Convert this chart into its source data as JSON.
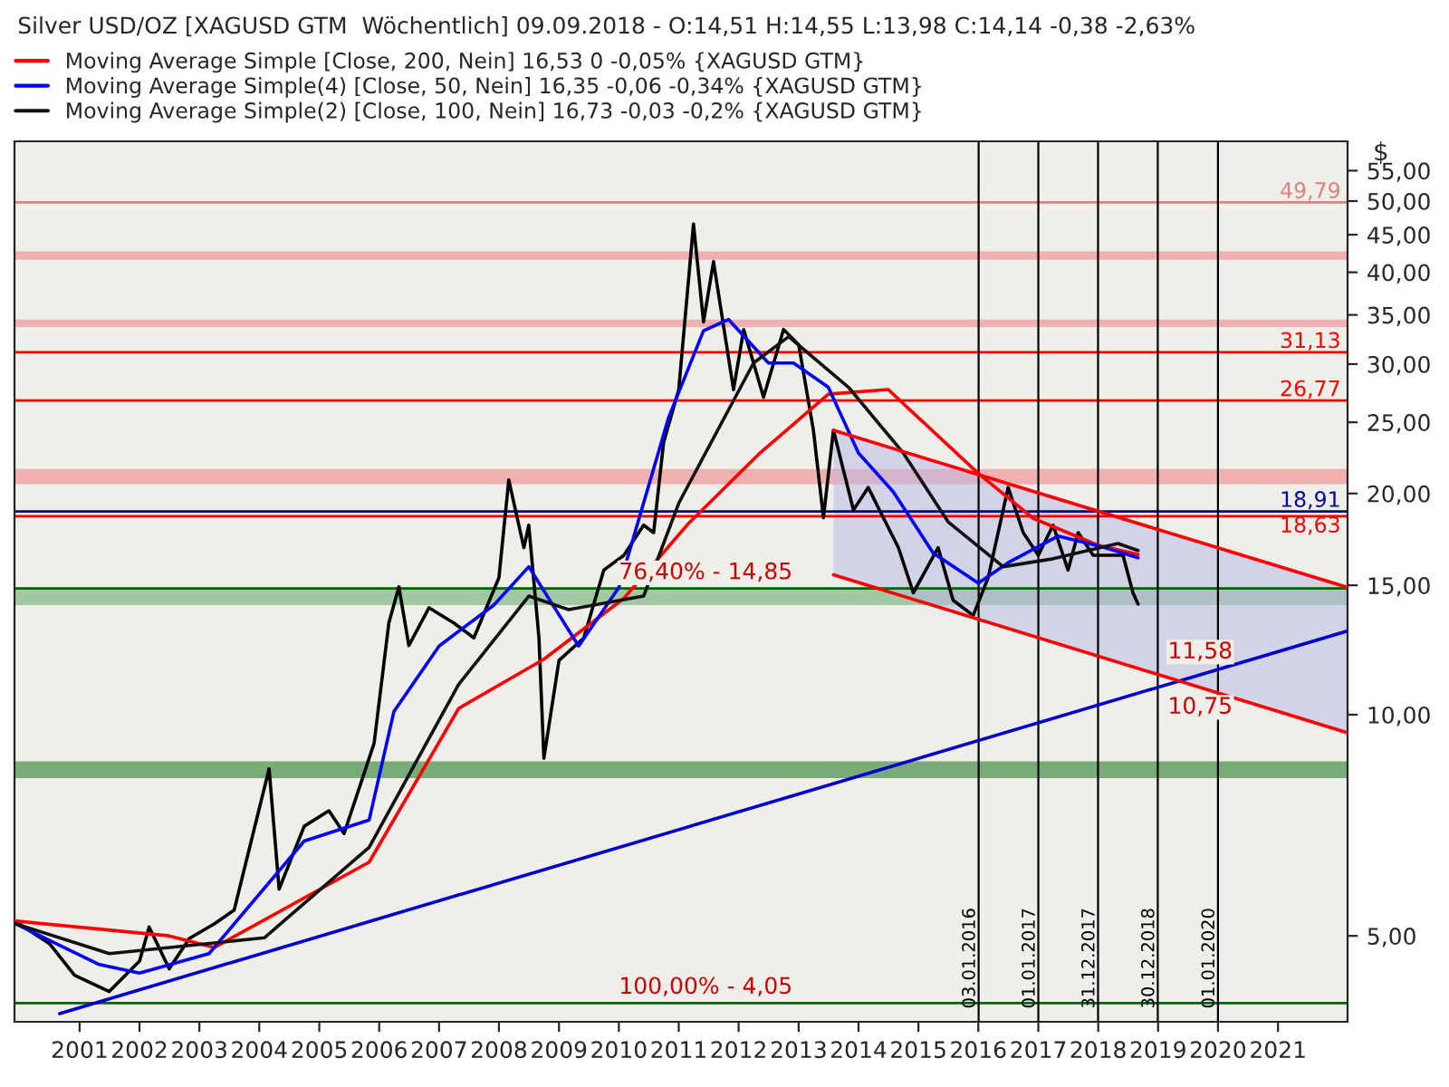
{
  "chart_data": {
    "type": "line",
    "log": "y",
    "ylabel": "$",
    "title": "Silver USD/OZ [XAGUSD GTM  Wöchentlich] 09.09.2018 - O:14,51 H:14,55 L:13,98 C:14,14 -0,38 -2,63%",
    "legend": "top left",
    "grid": false,
    "marker": "none",
    "line_style": "solid",
    "xlim": [
      "1999-12",
      "2022-03"
    ],
    "xticks": [
      "2001",
      "2002",
      "2003",
      "2004",
      "2005",
      "2006",
      "2007",
      "2008",
      "2009",
      "2010",
      "2011",
      "2012",
      "2013",
      "2014",
      "2015",
      "2016",
      "2017",
      "2018",
      "2019",
      "2020",
      "2021"
    ],
    "ylim": [
      3.82,
      60.3
    ],
    "yticks": [
      {
        "value": 5,
        "label": "5,00"
      },
      {
        "value": 10,
        "label": "10,00"
      },
      {
        "value": 15,
        "label": "15,00"
      },
      {
        "value": 20,
        "label": "20,00"
      },
      {
        "value": 25,
        "label": "25,00"
      },
      {
        "value": 30,
        "label": "30,00"
      },
      {
        "value": 35,
        "label": "35,00"
      },
      {
        "value": 40,
        "label": "40,00"
      },
      {
        "value": 45,
        "label": "45,00"
      },
      {
        "value": 50,
        "label": "50,00"
      },
      {
        "value": 55,
        "label": "55,00"
      }
    ],
    "series": [
      {
        "color": "#000000",
        "x": [
          "1999-12",
          "2000-07",
          "2000-12",
          "2001-07",
          "2002-01",
          "2002-03",
          "2002-07",
          "2002-11",
          "2003-04",
          "2003-08",
          "2004-03",
          "2004-05",
          "2004-10",
          "2005-03",
          "2005-06",
          "2005-12",
          "2006-03",
          "2006-05",
          "2006-07",
          "2006-11",
          "2007-04",
          "2007-08",
          "2008-01",
          "2008-03",
          "2008-06",
          "2008-07",
          "2008-09",
          "2008-10",
          "2009-01",
          "2009-06",
          "2009-10",
          "2010-02",
          "2010-06",
          "2010-08",
          "2010-10",
          "2011-01",
          "2011-04",
          "2011-06",
          "2011-08",
          "2011-12",
          "2012-02",
          "2012-06",
          "2012-10",
          "2013-01",
          "2013-04",
          "2013-06",
          "2013-08",
          "2013-12",
          "2014-03",
          "2014-06",
          "2014-09",
          "2014-12",
          "2015-05",
          "2015-08",
          "2015-12",
          "2016-03",
          "2016-07",
          "2016-10",
          "2017-01",
          "2017-04",
          "2017-07",
          "2017-09",
          "2017-12",
          "2018-03",
          "2018-06",
          "2018-08",
          "2018-09"
        ],
        "values": [
          5.24,
          4.88,
          4.42,
          4.2,
          4.62,
          5.14,
          4.51,
          4.96,
          5.19,
          5.42,
          8.44,
          5.79,
          7.05,
          7.4,
          6.89,
          9.14,
          13.33,
          14.93,
          12.42,
          13.98,
          13.33,
          12.72,
          15.36,
          20.87,
          16.88,
          18.11,
          12.72,
          8.72,
          11.85,
          12.72,
          15.73,
          16.48,
          18.11,
          17.69,
          23.48,
          27.69,
          46.52,
          34.24,
          41.35,
          27.69,
          33.44,
          27.04,
          33.44,
          31.89,
          24.38,
          18.54,
          24.38,
          18.99,
          20.38,
          18.54,
          16.88,
          14.65,
          16.88,
          14.31,
          13.65,
          15.36,
          20.38,
          17.69,
          16.48,
          18.11,
          15.73,
          17.69,
          16.48,
          16.48,
          16.48,
          14.65,
          14.14
        ]
      },
      {
        "name": "Moving Average Simple [Close, 200, Nein] 16,53 0 -0,05% {XAGUSD GTM}",
        "color": "#ff0000",
        "x": [
          "1999-12",
          "2002-07",
          "2003-04",
          "2005-11",
          "2007-05",
          "2008-10",
          "2010-02",
          "2011-03",
          "2012-05",
          "2013-07",
          "2014-07",
          "2016-01",
          "2016-12",
          "2018-01",
          "2018-09"
        ],
        "values": [
          5.24,
          5.0,
          4.82,
          6.3,
          10.2,
          11.9,
          14.4,
          18.2,
          22.6,
          27.3,
          27.7,
          21.3,
          18.5,
          17.0,
          16.53
        ]
      },
      {
        "name": "Moving Average Simple(4) [Close, 50, Nein] 16,35 -0,06 -0,34% {XAGUSD GTM}",
        "color": "#0000ff",
        "x": [
          "1999-12",
          "2001-05",
          "2002-01",
          "2003-03",
          "2004-10",
          "2005-11",
          "2006-04",
          "2007-01",
          "2007-12",
          "2008-07",
          "2009-05",
          "2010-01",
          "2010-11",
          "2011-06",
          "2011-11",
          "2012-07",
          "2012-12",
          "2013-07",
          "2014-01",
          "2014-08",
          "2015-04",
          "2016-01",
          "2016-07",
          "2017-05",
          "2018-02",
          "2018-09"
        ],
        "values": [
          5.2,
          4.57,
          4.45,
          4.73,
          6.73,
          7.19,
          10.1,
          12.4,
          14.1,
          15.9,
          12.4,
          14.9,
          25.4,
          33.3,
          34.5,
          30.1,
          30.1,
          27.9,
          22.7,
          20.1,
          16.6,
          15.1,
          16.1,
          17.5,
          16.9,
          16.35
        ]
      },
      {
        "name": "Moving Average Simple(2) [Close, 100, Nein] 16,73 -0,03 -0,2% {XAGUSD GTM}",
        "color": "#111111",
        "x": [
          "1999-12",
          "2001-07",
          "2004-02",
          "2005-11",
          "2007-05",
          "2008-07",
          "2009-03",
          "2010-06",
          "2011-01",
          "2012-04",
          "2012-11",
          "2013-11",
          "2014-10",
          "2015-07",
          "2016-06",
          "2017-04",
          "2018-05",
          "2018-09"
        ],
        "values": [
          5.2,
          4.73,
          4.97,
          6.6,
          11.0,
          14.5,
          13.9,
          14.5,
          19.4,
          30.1,
          32.7,
          27.9,
          22.7,
          18.3,
          15.9,
          16.3,
          17.1,
          16.73
        ]
      },
      {
        "color": "#0000cc",
        "x": [
          "2000-09",
          "2022-03"
        ],
        "values": [
          3.92,
          13.0
        ]
      },
      {
        "color": "#ff0000",
        "x": [
          "2013-08",
          "2022-03"
        ],
        "values": [
          24.38,
          14.9
        ],
        "lower": [
          15.5,
          9.45
        ],
        "upper": [
          24.38,
          14.9
        ]
      },
      {
        "color": "#ff0000",
        "x": [
          "2013-08",
          "2022-03"
        ],
        "values": [
          15.5,
          9.45
        ]
      }
    ],
    "bands": [
      {
        "axis": "y",
        "from": 41.6,
        "to": 42.7,
        "color": "#f0a0a0"
      },
      {
        "axis": "y",
        "from": 33.7,
        "to": 34.5,
        "color": "#f0a0a0"
      },
      {
        "axis": "y",
        "from": 20.6,
        "to": 21.6,
        "color": "#f0a0a0"
      },
      {
        "axis": "y",
        "from": 14.1,
        "to": 14.9,
        "color": "#8fbf8f"
      },
      {
        "axis": "y",
        "from": 8.2,
        "to": 8.64,
        "color": "#5a9a5a"
      }
    ],
    "ref_lines": [
      {
        "axis": "y",
        "value": 49.79,
        "label": "49,79",
        "color": "#e08080"
      },
      {
        "axis": "y",
        "value": 31.13,
        "label": "31,13",
        "color": "#ff0000"
      },
      {
        "axis": "y",
        "value": 26.77,
        "label": "26,77",
        "color": "#ff0000"
      },
      {
        "axis": "y",
        "value": 18.91,
        "label": "18,91",
        "color": "#0000aa"
      },
      {
        "axis": "y",
        "value": 18.63,
        "label": "18,63",
        "color": "#ff0000"
      },
      {
        "axis": "y",
        "value": 14.85,
        "color": "#006600"
      },
      {
        "axis": "y",
        "value": 4.05,
        "color": "#006600"
      },
      {
        "axis": "x",
        "value": "2016-01-03",
        "label": "03.01.2016",
        "color": "#000000"
      },
      {
        "axis": "x",
        "value": "2017-01-01",
        "label": "01.01.2017",
        "color": "#000000"
      },
      {
        "axis": "x",
        "value": "2017-12-31",
        "label": "31.12.2017",
        "color": "#000000"
      },
      {
        "axis": "x",
        "value": "2018-12-30",
        "label": "30.12.2018",
        "color": "#000000"
      },
      {
        "axis": "x",
        "value": "2020-01-01",
        "label": "01.01.2020",
        "color": "#000000"
      }
    ],
    "annotations": [
      {
        "text": "76,40% - 14,85",
        "x": "2010-01",
        "y": 14.85
      },
      {
        "text": "100,00% - 4,05",
        "x": "2010-01",
        "y": 4.05
      },
      {
        "text": "11,58",
        "x": "2019-03",
        "y": 11.58
      },
      {
        "text": "10,75",
        "x": "2019-03",
        "y": 10.75
      }
    ]
  }
}
